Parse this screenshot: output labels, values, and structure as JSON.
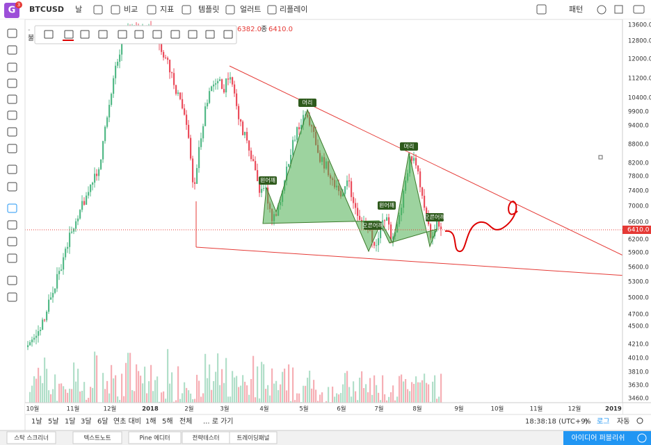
{
  "header": {
    "symbol": "BTCUSD",
    "buttons": [
      "날",
      "비교",
      "지표",
      "템플릿",
      "얼러트",
      "리플레이"
    ],
    "pattern": "패턴",
    "badge": "3"
  },
  "legend": {
    "open_label": "불",
    "open": "6382.0",
    "close_label": "종",
    "close": "6410.0"
  },
  "price_axis": {
    "labels": [
      "13600.0",
      "12800.0",
      "12000.0",
      "11200.0",
      "10400.0",
      "9900.0",
      "9400.0",
      "8800.0",
      "8200.0",
      "7800.0",
      "7400.0",
      "7000.0",
      "6600.0",
      "6200.0",
      "5900.0",
      "5600.0",
      "5300.0",
      "5000.0",
      "4700.0",
      "4500.0",
      "4210.0",
      "4010.0",
      "3810.0",
      "3630.0",
      "3460.0"
    ],
    "current": "6410.0"
  },
  "time_axis": {
    "labels": [
      "10월",
      "11월",
      "12월",
      "2018",
      "2월",
      "3월",
      "4월",
      "5월",
      "6월",
      "7월",
      "8월",
      "9월",
      "10월",
      "11월",
      "12월",
      "2019"
    ]
  },
  "pattern_labels": [
    "머리",
    "왼어깨",
    "오른어깨",
    "머리",
    "왼어깨",
    "오른어깨"
  ],
  "range_bar": {
    "buttons": [
      "1날",
      "5날",
      "1달",
      "3달",
      "6달",
      "연초 대비",
      "1해",
      "5해",
      "전체",
      "... 로 가기"
    ],
    "time": "18:38:18 (UTC+9)",
    "options": [
      "%",
      "로그",
      "자동"
    ]
  },
  "footer": {
    "tabs": [
      "스탁 스크리너",
      "텍스트노트",
      "Pine 에디터",
      "전략테스터",
      "트레이딩패널"
    ],
    "publish": "아이디어 퍼블리쉬"
  }
}
